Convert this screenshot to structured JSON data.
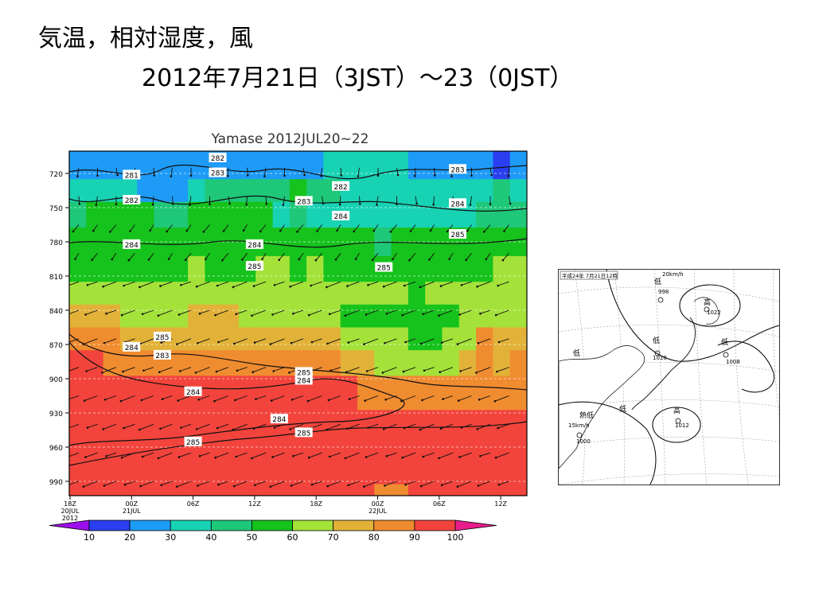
{
  "slide": {
    "title": "気温，相対湿度，風",
    "subtitle": "2012年7月21日（3JST）～23（0JST）"
  },
  "chart_data": {
    "type": "heatmap",
    "title": "Yamase 2012JUL20~22",
    "xlabel": "",
    "ylabel": "",
    "x_ticks": [
      "18Z\n20JUL\n2012",
      "00Z\n21JUL",
      "06Z",
      "12Z",
      "18Z",
      "00Z\n22JUL",
      "06Z",
      "12Z"
    ],
    "y_ticks": [
      720,
      750,
      780,
      810,
      840,
      870,
      900,
      930,
      960,
      990
    ],
    "ylim": [
      700,
      1010
    ],
    "y_reversed": true,
    "fill_variable": "relative humidity",
    "contour_variable": "temperature",
    "contour_labels": [
      {
        "text": "282",
        "t": 2.4,
        "p": 706
      },
      {
        "text": "283",
        "t": 2.4,
        "p": 719
      },
      {
        "text": "281",
        "t": 1.0,
        "p": 721
      },
      {
        "text": "282",
        "t": 1.0,
        "p": 743
      },
      {
        "text": "283",
        "t": 3.8,
        "p": 744
      },
      {
        "text": "282",
        "t": 4.4,
        "p": 731
      },
      {
        "text": "283",
        "t": 6.3,
        "p": 716
      },
      {
        "text": "284",
        "t": 6.3,
        "p": 746
      },
      {
        "text": "284",
        "t": 4.4,
        "p": 757
      },
      {
        "text": "285",
        "t": 6.3,
        "p": 773
      },
      {
        "text": "284",
        "t": 1.0,
        "p": 782
      },
      {
        "text": "284",
        "t": 3.0,
        "p": 782
      },
      {
        "text": "285",
        "t": 3.0,
        "p": 801
      },
      {
        "text": "285",
        "t": 5.1,
        "p": 802
      },
      {
        "text": "285",
        "t": 1.5,
        "p": 863
      },
      {
        "text": "284",
        "t": 1.0,
        "p": 872
      },
      {
        "text": "283",
        "t": 1.5,
        "p": 879
      },
      {
        "text": "285",
        "t": 3.8,
        "p": 894
      },
      {
        "text": "284",
        "t": 3.8,
        "p": 901
      },
      {
        "text": "284",
        "t": 2.0,
        "p": 911
      },
      {
        "text": "284",
        "t": 3.4,
        "p": 935
      },
      {
        "text": "285",
        "t": 3.8,
        "p": 947
      },
      {
        "text": "285",
        "t": 2.0,
        "p": 955
      }
    ],
    "rh_levels": [
      {
        "p": 715,
        "rh": [
          25,
          25,
          22,
          20,
          20,
          24,
          28,
          26,
          25,
          24,
          25,
          22,
          24,
          26,
          28,
          30,
          30,
          32,
          35,
          30,
          28,
          26,
          24,
          22,
          20,
          18,
          20
        ]
      },
      {
        "p": 735,
        "rh": [
          35,
          38,
          34,
          30,
          28,
          25,
          26,
          38,
          40,
          42,
          45,
          46,
          48,
          50,
          46,
          40,
          38,
          36,
          34,
          32,
          30,
          32,
          34,
          36,
          38,
          40,
          38
        ]
      },
      {
        "p": 755,
        "rh": [
          48,
          50,
          52,
          52,
          50,
          45,
          40,
          50,
          52,
          55,
          56,
          52,
          38,
          40,
          35,
          30,
          30,
          30,
          32,
          30,
          30,
          30,
          32,
          34,
          40,
          45,
          48
        ]
      },
      {
        "p": 780,
        "rh": [
          55,
          55,
          55,
          55,
          55,
          54,
          52,
          52,
          54,
          55,
          54,
          52,
          52,
          52,
          52,
          54,
          52,
          50,
          48,
          50,
          52,
          52,
          54,
          55,
          55,
          55,
          55
        ]
      },
      {
        "p": 805,
        "rh": [
          58,
          58,
          58,
          58,
          58,
          58,
          58,
          60,
          58,
          58,
          58,
          60,
          60,
          58,
          60,
          58,
          56,
          56,
          58,
          58,
          54,
          58,
          58,
          58,
          58,
          60,
          60
        ]
      },
      {
        "p": 825,
        "rh": [
          65,
          65,
          62,
          60,
          60,
          60,
          62,
          66,
          64,
          63,
          62,
          62,
          66,
          66,
          68,
          66,
          62,
          60,
          60,
          60,
          56,
          60,
          60,
          60,
          62,
          65,
          65
        ]
      },
      {
        "p": 845,
        "rh": [
          70,
          72,
          72,
          68,
          66,
          64,
          66,
          70,
          70,
          70,
          68,
          64,
          66,
          64,
          62,
          62,
          56,
          56,
          56,
          56,
          54,
          56,
          56,
          60,
          62,
          68,
          68
        ]
      },
      {
        "p": 865,
        "rh": [
          82,
          84,
          80,
          78,
          76,
          74,
          74,
          74,
          76,
          78,
          76,
          74,
          76,
          74,
          72,
          70,
          65,
          65,
          62,
          60,
          55,
          55,
          60,
          64,
          88,
          75,
          76
        ]
      },
      {
        "p": 885,
        "rh": [
          92,
          90,
          86,
          84,
          84,
          82,
          82,
          82,
          82,
          82,
          82,
          82,
          82,
          82,
          80,
          80,
          78,
          75,
          66,
          68,
          64,
          62,
          66,
          70,
          88,
          78,
          80
        ]
      },
      {
        "p": 910,
        "rh": [
          95,
          95,
          95,
          95,
          95,
          95,
          95,
          95,
          95,
          95,
          95,
          95,
          95,
          95,
          95,
          94,
          92,
          88,
          86,
          84,
          82,
          80,
          80,
          82,
          82,
          80,
          80
        ]
      },
      {
        "p": 945,
        "rh": [
          96,
          96,
          96,
          96,
          96,
          96,
          96,
          96,
          96,
          96,
          96,
          96,
          96,
          96,
          96,
          96,
          96,
          96,
          96,
          96,
          96,
          96,
          95,
          95,
          95,
          95,
          95
        ]
      },
      {
        "p": 980,
        "rh": [
          95,
          95,
          95,
          95,
          95,
          95,
          95,
          95,
          95,
          95,
          95,
          95,
          95,
          95,
          95,
          95,
          95,
          95,
          95,
          95,
          95,
          95,
          95,
          95,
          95,
          95,
          95
        ]
      },
      {
        "p": 1005,
        "rh": [
          95,
          95,
          95,
          95,
          95,
          95,
          95,
          95,
          95,
          95,
          95,
          95,
          95,
          95,
          95,
          95,
          95,
          95,
          80,
          80,
          90,
          95,
          95,
          95,
          95,
          95,
          95
        ]
      }
    ],
    "colorbar": {
      "ticks": [
        10,
        20,
        30,
        40,
        50,
        60,
        70,
        80,
        90,
        100
      ],
      "colors": [
        "#9b10ea",
        "#2a3ff0",
        "#1e9bf7",
        "#18d2b4",
        "#1ec878",
        "#16c21c",
        "#a4e23a",
        "#e2b238",
        "#f08c30",
        "#f2443c",
        "#e81d8c"
      ]
    },
    "wind_rows": [
      {
        "p": 715,
        "dir": "S"
      },
      {
        "p": 740,
        "dir": "S"
      },
      {
        "p": 765,
        "dir": "SE"
      },
      {
        "p": 790,
        "dir": "SE"
      },
      {
        "p": 815,
        "dir": "E"
      },
      {
        "p": 840,
        "dir": "E"
      },
      {
        "p": 865,
        "dir": "E"
      },
      {
        "p": 890,
        "dir": "E"
      },
      {
        "p": 915,
        "dir": "E"
      },
      {
        "p": 940,
        "dir": "E"
      },
      {
        "p": 965,
        "dir": "E"
      },
      {
        "p": 990,
        "dir": "E"
      }
    ]
  },
  "weather_map": {
    "header": "平成24年 7月21日12時",
    "labels": [
      {
        "text": "低",
        "kind": "low"
      },
      {
        "text": "998",
        "kind": "num"
      },
      {
        "text": "20km/h",
        "kind": "num"
      },
      {
        "text": "高",
        "kind": "high"
      },
      {
        "text": "1022",
        "kind": "num"
      },
      {
        "text": "低",
        "kind": "low"
      },
      {
        "text": "1010",
        "kind": "num"
      },
      {
        "text": "低",
        "kind": "low"
      },
      {
        "text": "1008",
        "kind": "num"
      },
      {
        "text": "低",
        "kind": "low"
      },
      {
        "text": "熱低",
        "kind": "low"
      },
      {
        "text": "1000",
        "kind": "num"
      },
      {
        "text": "15km/h",
        "kind": "num"
      },
      {
        "text": "高",
        "kind": "high"
      },
      {
        "text": "1012",
        "kind": "num"
      },
      {
        "text": "低",
        "kind": "low"
      }
    ]
  }
}
